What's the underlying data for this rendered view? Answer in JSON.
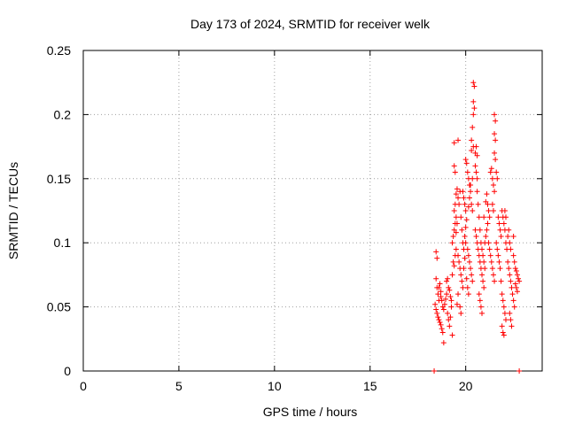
{
  "chart_data": {
    "type": "scatter",
    "title": "Day 173 of 2024, SRMTID for receiver welk",
    "xlabel": "GPS time / hours",
    "ylabel": "SRMTID / TECUs",
    "xlim": [
      0,
      24
    ],
    "ylim": [
      0,
      0.25
    ],
    "xticks": [
      0,
      5,
      10,
      15,
      20
    ],
    "yticks": [
      0,
      0.05,
      0.1,
      0.15,
      0.2,
      0.25
    ],
    "xtick_labels": [
      "0",
      "5",
      "10",
      "15",
      "20"
    ],
    "ytick_labels": [
      "0",
      "0.05",
      "0.1",
      "0.15",
      "0.2",
      "0.25"
    ],
    "grid": true,
    "marker": "+",
    "colors": {
      "series": "#ff0000",
      "grid": "#a0a0a0",
      "axis": "#000000"
    },
    "series": [
      {
        "points": [
          [
            18.35,
            0.0
          ],
          [
            22.8,
            0.0
          ],
          [
            18.45,
            0.093
          ],
          [
            18.5,
            0.088
          ],
          [
            18.45,
            0.072
          ],
          [
            18.5,
            0.065
          ],
          [
            18.55,
            0.06
          ],
          [
            18.6,
            0.055
          ],
          [
            18.4,
            0.052
          ],
          [
            18.45,
            0.048
          ],
          [
            18.5,
            0.045
          ],
          [
            18.55,
            0.042
          ],
          [
            18.6,
            0.04
          ],
          [
            18.65,
            0.038
          ],
          [
            18.7,
            0.036
          ],
          [
            18.75,
            0.033
          ],
          [
            18.8,
            0.03
          ],
          [
            18.85,
            0.022
          ],
          [
            18.7,
            0.058
          ],
          [
            18.75,
            0.055
          ],
          [
            18.8,
            0.05
          ],
          [
            18.85,
            0.048
          ],
          [
            18.9,
            0.052
          ],
          [
            18.95,
            0.056
          ],
          [
            19.0,
            0.06
          ],
          [
            18.6,
            0.065
          ],
          [
            18.65,
            0.068
          ],
          [
            18.7,
            0.062
          ],
          [
            19.05,
            0.045
          ],
          [
            19.1,
            0.04
          ],
          [
            19.15,
            0.035
          ],
          [
            19.2,
            0.042
          ],
          [
            19.25,
            0.05
          ],
          [
            19.3,
            0.028
          ],
          [
            19.0,
            0.07
          ],
          [
            19.05,
            0.072
          ],
          [
            19.1,
            0.065
          ],
          [
            19.15,
            0.063
          ],
          [
            19.2,
            0.058
          ],
          [
            19.25,
            0.055
          ],
          [
            19.3,
            0.075
          ],
          [
            19.35,
            0.085
          ],
          [
            19.4,
            0.082
          ],
          [
            19.45,
            0.09
          ],
          [
            19.5,
            0.095
          ],
          [
            19.3,
            0.1
          ],
          [
            19.35,
            0.105
          ],
          [
            19.4,
            0.11
          ],
          [
            19.45,
            0.115
          ],
          [
            19.5,
            0.12
          ],
          [
            19.4,
            0.125
          ],
          [
            19.45,
            0.13
          ],
          [
            19.5,
            0.138
          ],
          [
            19.55,
            0.142
          ],
          [
            19.6,
            0.135
          ],
          [
            19.65,
            0.13
          ],
          [
            19.4,
            0.178
          ],
          [
            19.6,
            0.18
          ],
          [
            19.4,
            0.16
          ],
          [
            19.45,
            0.155
          ],
          [
            19.7,
            0.14
          ],
          [
            19.75,
            0.12
          ],
          [
            19.8,
            0.11
          ],
          [
            19.85,
            0.1
          ],
          [
            19.9,
            0.095
          ],
          [
            19.95,
            0.105
          ],
          [
            20.0,
            0.112
          ],
          [
            20.05,
            0.118
          ],
          [
            19.6,
            0.09
          ],
          [
            19.65,
            0.085
          ],
          [
            19.7,
            0.08
          ],
          [
            19.75,
            0.075
          ],
          [
            19.8,
            0.07
          ],
          [
            19.85,
            0.065
          ],
          [
            19.7,
            0.05
          ],
          [
            19.75,
            0.045
          ],
          [
            19.6,
            0.06
          ],
          [
            19.55,
            0.052
          ],
          [
            20.0,
            0.165
          ],
          [
            20.05,
            0.162
          ],
          [
            20.1,
            0.155
          ],
          [
            20.15,
            0.15
          ],
          [
            20.2,
            0.145
          ],
          [
            20.25,
            0.14
          ],
          [
            20.3,
            0.13
          ],
          [
            20.35,
            0.125
          ],
          [
            20.4,
            0.225
          ],
          [
            20.45,
            0.222
          ],
          [
            20.4,
            0.21
          ],
          [
            20.45,
            0.205
          ],
          [
            20.4,
            0.2
          ],
          [
            20.35,
            0.19
          ],
          [
            20.3,
            0.18
          ],
          [
            20.3,
            0.172
          ],
          [
            20.4,
            0.175
          ],
          [
            20.5,
            0.17
          ],
          [
            20.5,
            0.16
          ],
          [
            20.55,
            0.155
          ],
          [
            20.6,
            0.15
          ],
          [
            20.6,
            0.14
          ],
          [
            20.65,
            0.13
          ],
          [
            20.7,
            0.12
          ],
          [
            20.75,
            0.11
          ],
          [
            20.8,
            0.1
          ],
          [
            20.85,
            0.095
          ],
          [
            20.9,
            0.09
          ],
          [
            20.95,
            0.085
          ],
          [
            21.0,
            0.08
          ],
          [
            20.5,
            0.11
          ],
          [
            20.55,
            0.105
          ],
          [
            20.6,
            0.1
          ],
          [
            20.65,
            0.095
          ],
          [
            20.7,
            0.09
          ],
          [
            20.75,
            0.085
          ],
          [
            20.8,
            0.08
          ],
          [
            20.85,
            0.075
          ],
          [
            20.9,
            0.07
          ],
          [
            20.95,
            0.065
          ],
          [
            20.7,
            0.06
          ],
          [
            20.75,
            0.055
          ],
          [
            20.8,
            0.05
          ],
          [
            20.85,
            0.045
          ],
          [
            20.1,
            0.095
          ],
          [
            20.15,
            0.09
          ],
          [
            20.2,
            0.085
          ],
          [
            20.25,
            0.08
          ],
          [
            20.3,
            0.075
          ],
          [
            20.35,
            0.07
          ],
          [
            20.0,
            0.1
          ],
          [
            19.95,
            0.088
          ],
          [
            19.9,
            0.08
          ],
          [
            20.05,
            0.072
          ],
          [
            20.1,
            0.065
          ],
          [
            20.15,
            0.06
          ],
          [
            21.0,
            0.1
          ],
          [
            21.05,
            0.105
          ],
          [
            21.1,
            0.11
          ],
          [
            21.15,
            0.115
          ],
          [
            21.2,
            0.1
          ],
          [
            21.25,
            0.095
          ],
          [
            21.3,
            0.09
          ],
          [
            21.35,
            0.085
          ],
          [
            21.4,
            0.08
          ],
          [
            21.45,
            0.075
          ],
          [
            21.5,
            0.07
          ],
          [
            21.3,
            0.155
          ],
          [
            21.35,
            0.158
          ],
          [
            21.4,
            0.15
          ],
          [
            21.45,
            0.145
          ],
          [
            21.5,
            0.14
          ],
          [
            21.4,
            0.13
          ],
          [
            21.45,
            0.125
          ],
          [
            21.5,
            0.2
          ],
          [
            21.55,
            0.195
          ],
          [
            21.5,
            0.185
          ],
          [
            21.55,
            0.18
          ],
          [
            21.5,
            0.17
          ],
          [
            21.55,
            0.165
          ],
          [
            21.6,
            0.155
          ],
          [
            21.65,
            0.15
          ],
          [
            21.7,
            0.12
          ],
          [
            21.75,
            0.115
          ],
          [
            21.8,
            0.11
          ],
          [
            21.85,
            0.105
          ],
          [
            21.9,
            0.125
          ],
          [
            21.95,
            0.12
          ],
          [
            22.0,
            0.115
          ],
          [
            22.05,
            0.11
          ],
          [
            22.1,
            0.1
          ],
          [
            22.15,
            0.095
          ],
          [
            21.6,
            0.1
          ],
          [
            21.65,
            0.095
          ],
          [
            21.7,
            0.09
          ],
          [
            21.75,
            0.085
          ],
          [
            21.8,
            0.08
          ],
          [
            21.85,
            0.07
          ],
          [
            21.9,
            0.06
          ],
          [
            21.95,
            0.055
          ],
          [
            22.0,
            0.05
          ],
          [
            22.05,
            0.045
          ],
          [
            22.1,
            0.04
          ],
          [
            21.9,
            0.035
          ],
          [
            21.95,
            0.03
          ],
          [
            22.0,
            0.028
          ],
          [
            22.2,
            0.085
          ],
          [
            22.25,
            0.08
          ],
          [
            22.3,
            0.075
          ],
          [
            22.35,
            0.07
          ],
          [
            22.4,
            0.065
          ],
          [
            22.45,
            0.06
          ],
          [
            22.5,
            0.055
          ],
          [
            22.55,
            0.05
          ],
          [
            22.3,
            0.045
          ],
          [
            22.35,
            0.04
          ],
          [
            22.4,
            0.035
          ],
          [
            22.5,
            0.09
          ],
          [
            22.55,
            0.085
          ],
          [
            22.6,
            0.08
          ],
          [
            22.65,
            0.078
          ],
          [
            22.7,
            0.075
          ],
          [
            22.75,
            0.072
          ],
          [
            22.8,
            0.07
          ],
          [
            22.6,
            0.068
          ],
          [
            22.65,
            0.065
          ],
          [
            22.7,
            0.062
          ],
          [
            22.5,
            0.105
          ],
          [
            22.2,
            0.105
          ],
          [
            22.25,
            0.11
          ],
          [
            22.3,
            0.1
          ],
          [
            22.35,
            0.095
          ],
          [
            22.1,
            0.12
          ],
          [
            22.05,
            0.125
          ],
          [
            21.2,
            0.125
          ],
          [
            21.25,
            0.12
          ],
          [
            21.15,
            0.13
          ],
          [
            21.1,
            0.138
          ],
          [
            21.05,
            0.132
          ],
          [
            20.95,
            0.12
          ],
          [
            20.55,
            0.175
          ],
          [
            20.6,
            0.168
          ],
          [
            20.35,
            0.15
          ],
          [
            20.25,
            0.145
          ],
          [
            20.2,
            0.135
          ],
          [
            20.15,
            0.128
          ],
          [
            19.85,
            0.14
          ],
          [
            19.9,
            0.135
          ],
          [
            19.95,
            0.13
          ],
          [
            20.0,
            0.125
          ],
          [
            19.55,
            0.115
          ],
          [
            19.5,
            0.108
          ]
        ]
      }
    ]
  }
}
